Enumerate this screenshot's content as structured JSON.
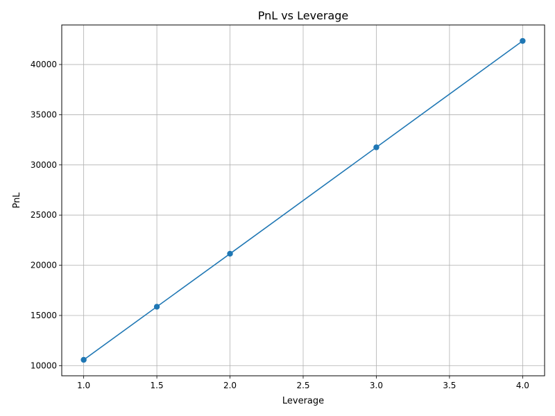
{
  "chart_data": {
    "type": "line",
    "title": "PnL vs Leverage",
    "xlabel": "Leverage",
    "ylabel": "PnL",
    "x": [
      1.0,
      1.5,
      2.0,
      3.0,
      4.0
    ],
    "series": [
      {
        "name": "PnL",
        "values": [
          10580,
          15870,
          21150,
          31750,
          42350
        ]
      }
    ],
    "xlim": [
      0.85,
      4.15
    ],
    "ylim": [
      8990,
      43940
    ],
    "xticks": [
      1.0,
      1.5,
      2.0,
      2.5,
      3.0,
      3.5,
      4.0
    ],
    "xtick_labels": [
      "1.0",
      "1.5",
      "2.0",
      "2.5",
      "3.0",
      "3.5",
      "4.0"
    ],
    "yticks": [
      10000,
      15000,
      20000,
      25000,
      30000,
      35000,
      40000
    ],
    "ytick_labels": [
      "10000",
      "15000",
      "20000",
      "25000",
      "30000",
      "35000",
      "40000"
    ],
    "grid": true,
    "marker": "circle",
    "line_color": "#1f77b4",
    "grid_color": "#b0b0b0"
  }
}
